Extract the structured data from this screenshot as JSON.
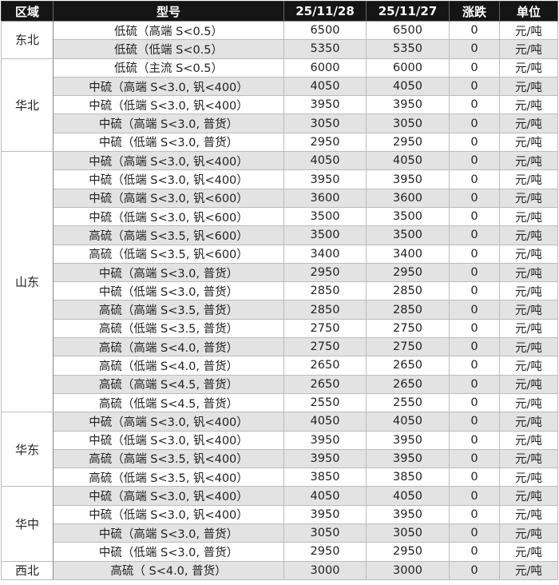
{
  "headers": [
    "区域",
    "型号",
    "25/11/28",
    "25/11/27",
    "涨跌",
    "单位"
  ],
  "groups": [
    {
      "region": "东北",
      "rows": [
        [
          "低硫（高端 S<0.5）",
          "6500",
          "6500",
          "0",
          "元/吨"
        ],
        [
          "低硫（低端 S<0.5）",
          "5350",
          "5350",
          "0",
          "元/吨"
        ]
      ]
    },
    {
      "region": "华北",
      "rows": [
        [
          "低硫（主流 S<0.5）",
          "6000",
          "6000",
          "0",
          "元/吨"
        ],
        [
          "中硫（高端 S<3.0, 钒<400）",
          "4050",
          "4050",
          "0",
          "元/吨"
        ],
        [
          "中硫（低端 S<3.0, 钒<400）",
          "3950",
          "3950",
          "0",
          "元/吨"
        ],
        [
          "中硫（高端 S<3.0, 普货）",
          "3050",
          "3050",
          "0",
          "元/吨"
        ],
        [
          "中硫（低端 S<3.0, 普货）",
          "2950",
          "2950",
          "0",
          "元/吨"
        ]
      ]
    },
    {
      "region": "山东",
      "rows": [
        [
          "中硫（高端 S<3.0, 钒<400）",
          "4050",
          "4050",
          "0",
          "元/吨"
        ],
        [
          "中硫（低端 S<3.0, 钒<400）",
          "3950",
          "3950",
          "0",
          "元/吨"
        ],
        [
          "中硫（高端 S<3.0, 钒<600）",
          "3600",
          "3600",
          "0",
          "元/吨"
        ],
        [
          "中硫（低端 S<3.0, 钒<600）",
          "3500",
          "3500",
          "0",
          "元/吨"
        ],
        [
          "高硫（高端 S<3.5, 钒<600）",
          "3500",
          "3500",
          "0",
          "元/吨"
        ],
        [
          "高硫（低端 S<3.5, 钒<600）",
          "3400",
          "3400",
          "0",
          "元/吨"
        ],
        [
          "中硫（高端 S<3.0, 普货）",
          "2950",
          "2950",
          "0",
          "元/吨"
        ],
        [
          "中硫（低端 S<3.0, 普货）",
          "2850",
          "2850",
          "0",
          "元/吨"
        ],
        [
          "高硫（高端 S<3.5, 普货）",
          "2850",
          "2850",
          "0",
          "元/吨"
        ],
        [
          "高硫（低端 S<3.5, 普货）",
          "2750",
          "2750",
          "0",
          "元/吨"
        ],
        [
          "高硫（高端 S<4.0, 普货）",
          "2750",
          "2750",
          "0",
          "元/吨"
        ],
        [
          "高硫（低端 S<4.0, 普货）",
          "2650",
          "2650",
          "0",
          "元/吨"
        ],
        [
          "高硫（高端 S<4.5, 普货）",
          "2650",
          "2650",
          "0",
          "元/吨"
        ],
        [
          "高硫（低端 S<4.5, 普货）",
          "2550",
          "2550",
          "0",
          "元/吨"
        ]
      ]
    },
    {
      "region": "华东",
      "rows": [
        [
          "中硫（高端 S<3.0, 钒<400）",
          "4050",
          "4050",
          "0",
          "元/吨"
        ],
        [
          "中硫（低端 S<3.0, 钒<400）",
          "3950",
          "3950",
          "0",
          "元/吨"
        ],
        [
          "高硫（高端 S<3.5, 钒<400）",
          "3950",
          "3950",
          "0",
          "元/吨"
        ],
        [
          "高硫（低端 S<3.5, 钒<400）",
          "3850",
          "3850",
          "0",
          "元/吨"
        ]
      ]
    },
    {
      "region": "华中",
      "rows": [
        [
          "中硫（高端 S<3.0, 钒<400）",
          "4050",
          "4050",
          "0",
          "元/吨"
        ],
        [
          "中硫（低端 S<3.0, 钒<400）",
          "3950",
          "3950",
          "0",
          "元/吨"
        ],
        [
          "中硫（高端 S<3.0, 普货）",
          "3050",
          "3050",
          "0",
          "元/吨"
        ],
        [
          "中硫（低端 S<3.0, 普货）",
          "2950",
          "2950",
          "0",
          "元/吨"
        ]
      ]
    },
    {
      "region": "西北",
      "rows": [
        [
          "高硫（ S<4.0, 普货）",
          "3000",
          "3000",
          "0",
          "元/吨"
        ]
      ]
    }
  ]
}
